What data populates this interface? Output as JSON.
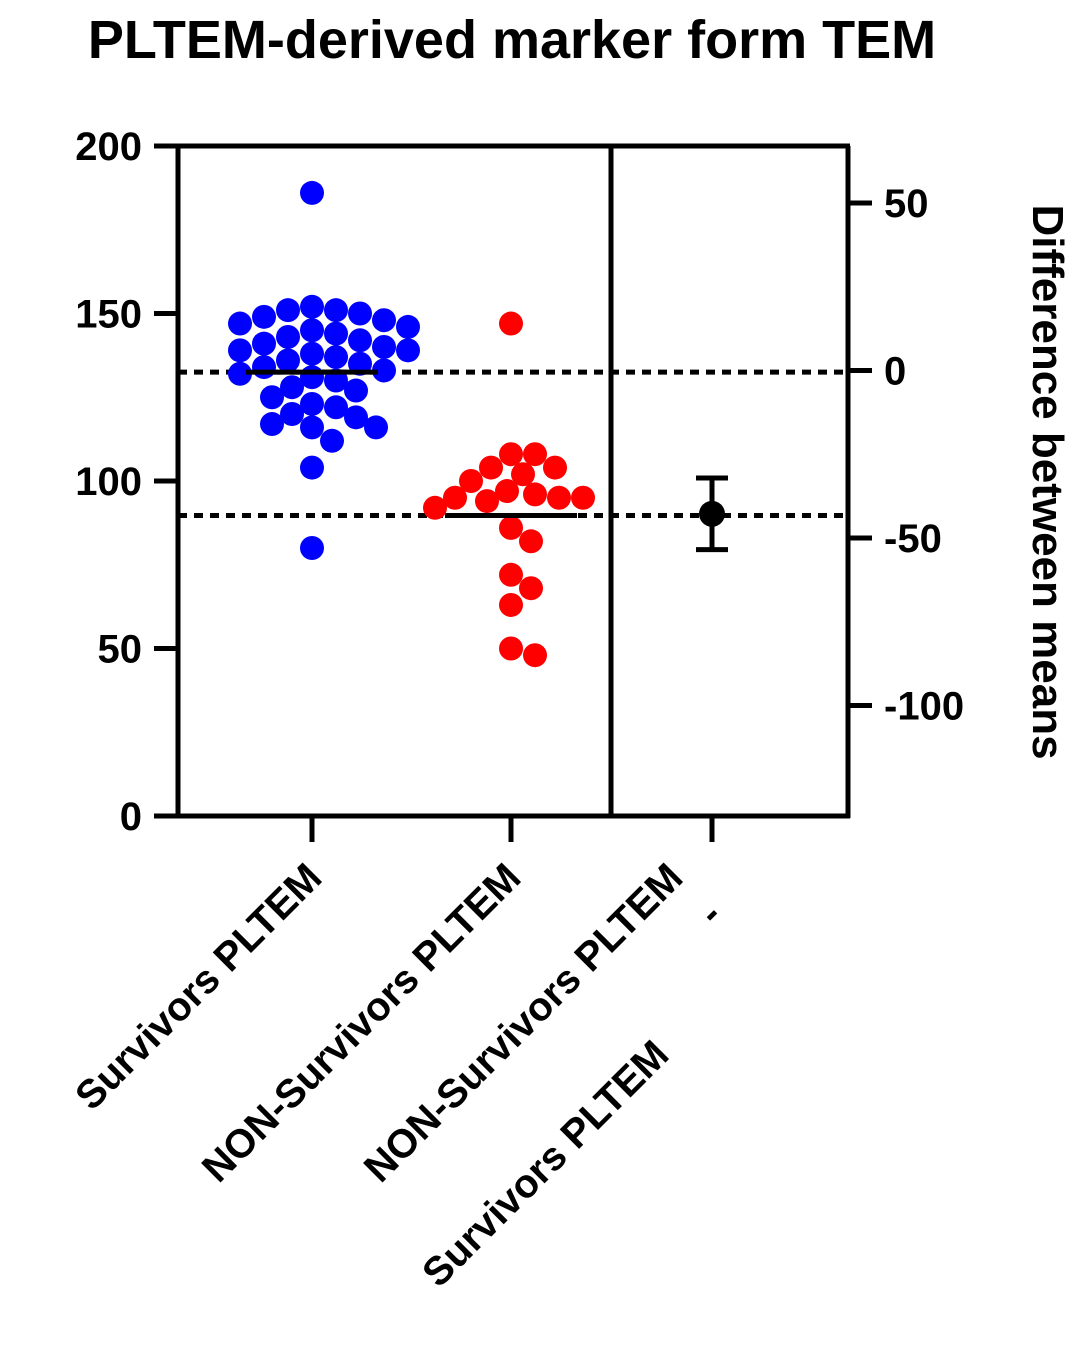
{
  "chart_data": {
    "type": "scatter",
    "title": "PLTEM-derived marker form TEM",
    "categories": [
      "Survivors PLTEM",
      "NON-Survivors PLTEM"
    ],
    "ylabel": "",
    "ylim": [
      0,
      200
    ],
    "yticks": [
      "0",
      "50",
      "100",
      "150",
      "200"
    ],
    "y2label": "Difference between means",
    "y2lim": [
      -133,
      67
    ],
    "y2ticks": [
      "-100",
      "-50",
      "0",
      "50"
    ],
    "difference_category": [
      "NON-Survivors PLTEM",
      "-",
      "Survivors PLTEM"
    ],
    "series": [
      {
        "name": "Survivors PLTEM",
        "color": "#0000ff",
        "mean": 132.5,
        "values": [
          186,
          152,
          151,
          151,
          150,
          149,
          148,
          147,
          146,
          145,
          144,
          143,
          142,
          141,
          140,
          139,
          139,
          138,
          137,
          136,
          135,
          134,
          133,
          132,
          131,
          130,
          128,
          127,
          125,
          123,
          122,
          120,
          119,
          117,
          116,
          116,
          112,
          104,
          80
        ]
      },
      {
        "name": "NON-Survivors PLTEM",
        "color": "#ff0000",
        "mean": 89.7,
        "values": [
          147,
          108,
          108,
          104,
          104,
          102,
          100,
          97,
          96,
          95,
          95,
          95,
          94,
          92,
          86,
          82,
          72,
          68,
          63,
          50,
          48
        ]
      }
    ],
    "difference": {
      "mean": -42.8,
      "ci_low": -53.5,
      "ci_high": -32.1,
      "color": "#000000"
    }
  }
}
